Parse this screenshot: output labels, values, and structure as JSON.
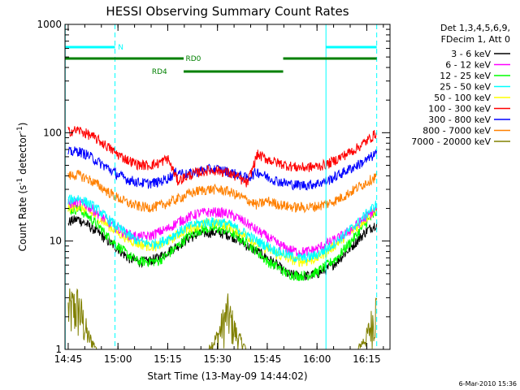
{
  "chart_data": {
    "type": "line",
    "title": "HESSI Observing Summary Count Rates",
    "xlabel": "Start Time (13-May-09 14:44:02)",
    "ylabel_main": "Count Rate (s",
    "ylabel_sup1": "-1",
    "ylabel_mid": " detector",
    "ylabel_sup2": "-1",
    "ylabel_end": ")",
    "ylabel": "Count Rate (s^-1 detector^-1)",
    "yscale": "log",
    "xlim": [
      14.7339,
      16.3667
    ],
    "ylim": [
      1,
      1000
    ],
    "x_ticks": [
      {
        "value": 14.75,
        "label": "14:45"
      },
      {
        "value": 15.0,
        "label": "15:00"
      },
      {
        "value": 15.25,
        "label": "15:15"
      },
      {
        "value": 15.5,
        "label": "15:30"
      },
      {
        "value": 15.75,
        "label": "15:45"
      },
      {
        "value": 16.0,
        "label": "16:00"
      },
      {
        "value": 16.25,
        "label": "16:15"
      }
    ],
    "y_ticks": [
      {
        "value": 1,
        "label": "1"
      },
      {
        "value": 10,
        "label": "10"
      },
      {
        "value": 100,
        "label": "100"
      },
      {
        "value": 1000,
        "label": "1000"
      }
    ],
    "legend_header": [
      "Det 1,3,4,5,6,9,",
      "FDecim 1, Att 0"
    ],
    "legend_position": "right",
    "footer": "6-Mar-2010 15:36",
    "vlines": {
      "solid": [
        14.735,
        16.045
      ],
      "dashed": [
        14.985,
        16.3
      ]
    },
    "flags": [
      {
        "label": "N",
        "color": "#00ffff",
        "level": 0.93,
        "segments": [
          [
            14.735,
            14.985
          ],
          [
            16.045,
            16.3
          ]
        ],
        "label_at": 15.0
      },
      {
        "label": "RD0",
        "color": "#008000",
        "level": 0.895,
        "segments": [
          [
            14.735,
            15.33
          ],
          [
            15.83,
            16.3
          ]
        ],
        "label_at": 15.34
      },
      {
        "label": "RD4",
        "color": "#008000",
        "level": 0.855,
        "segments": [
          [
            15.33,
            15.83
          ]
        ],
        "label_at": 15.17
      }
    ],
    "x": [
      14.75,
      14.8,
      14.85,
      14.9,
      14.95,
      15.0,
      15.05,
      15.1,
      15.15,
      15.2,
      15.25,
      15.3,
      15.35,
      15.4,
      15.45,
      15.5,
      15.55,
      15.6,
      15.65,
      15.7,
      15.75,
      15.8,
      15.85,
      15.9,
      15.95,
      16.0,
      16.05,
      16.1,
      16.15,
      16.2,
      16.25,
      16.3
    ],
    "series": [
      {
        "name": "3 - 6 keV",
        "color": "#000000",
        "values": [
          15,
          16,
          14,
          12,
          10,
          8.5,
          7,
          6.5,
          6.5,
          7,
          8,
          9,
          10.5,
          11.5,
          12,
          12,
          11.5,
          10.5,
          9,
          8,
          7,
          6,
          5,
          4.8,
          4.8,
          5,
          5.5,
          6.5,
          8,
          10,
          12.5,
          14.5
        ]
      },
      {
        "name": "6 - 12 keV",
        "color": "#ff00ff",
        "values": [
          22,
          23,
          21,
          18,
          15,
          13,
          11.5,
          11,
          11,
          12,
          13,
          15,
          16.5,
          18,
          18.5,
          18.5,
          18,
          16.5,
          14.5,
          12.5,
          11,
          9.5,
          8.5,
          8,
          8,
          8.5,
          9.5,
          10.5,
          12,
          14,
          17,
          20
        ]
      },
      {
        "name": "12 - 25 keV",
        "color": "#00ff00",
        "values": [
          19,
          20,
          17,
          14,
          11,
          9,
          7.5,
          6.5,
          6.5,
          6.5,
          7.5,
          9,
          11,
          12.5,
          13,
          13,
          12.5,
          11,
          9.5,
          8,
          6.5,
          5.8,
          5,
          4.8,
          4.8,
          5.2,
          6,
          7,
          9,
          11.5,
          15,
          18.5
        ]
      },
      {
        "name": "25 - 50 keV",
        "color": "#00ffff",
        "values": [
          24,
          25,
          22.5,
          19.5,
          16,
          13.5,
          11.5,
          10,
          9.5,
          9.5,
          10.5,
          12,
          13.5,
          14.5,
          15,
          15,
          14.5,
          13,
          11.5,
          10,
          9,
          8,
          7.5,
          7,
          7,
          7.5,
          8.5,
          10,
          12,
          14.5,
          18,
          22
        ]
      },
      {
        "name": "50 - 100 keV",
        "color": "#ffff00",
        "values": [
          20,
          21,
          19,
          16.5,
          14,
          12,
          10.5,
          9.5,
          9,
          9,
          10,
          11.5,
          13,
          14,
          14.5,
          14.5,
          14,
          12.5,
          11,
          9.5,
          8.5,
          7.5,
          7,
          6.5,
          6.5,
          7,
          8,
          9.5,
          11.5,
          13.5,
          16.5,
          20
        ]
      },
      {
        "name": "100 - 300 keV",
        "color": "#ff0000",
        "values": [
          103,
          106,
          97,
          86,
          74,
          63,
          56,
          51,
          50,
          52,
          58,
          36,
          40,
          43,
          45,
          45,
          43,
          39,
          34,
          63,
          57,
          53,
          50,
          48,
          48,
          49,
          51,
          57,
          64,
          72,
          84,
          100
        ]
      },
      {
        "name": "300 - 800 keV",
        "color": "#0000ff",
        "values": [
          66,
          68,
          62,
          54,
          47,
          41,
          37,
          35,
          34,
          35,
          38,
          44,
          41,
          44,
          46,
          46,
          44,
          41,
          38,
          44,
          39,
          36,
          34,
          33,
          33,
          34,
          36,
          40,
          45,
          50,
          56,
          65
        ]
      },
      {
        "name": "800 - 7000 keV",
        "color": "#ff8000",
        "values": [
          40,
          41,
          37.5,
          33,
          28.5,
          25,
          22.5,
          21,
          20.5,
          21,
          22.5,
          24.5,
          27,
          29,
          30,
          30,
          29,
          26.5,
          24,
          21.5,
          23.5,
          22,
          21,
          20.5,
          20.5,
          21,
          22,
          24,
          27,
          31,
          35,
          40
        ]
      },
      {
        "name": "7000 - 20000 keV",
        "color": "#808000",
        "values": [
          2.3,
          2.5,
          1.3,
          1,
          1,
          1,
          1,
          1,
          1,
          1,
          1,
          1,
          1,
          1,
          1,
          1.3,
          2.2,
          1.3,
          1,
          1,
          1,
          1,
          1,
          1,
          1,
          1,
          1,
          1,
          1,
          1,
          1.3,
          2.4
        ]
      }
    ]
  }
}
